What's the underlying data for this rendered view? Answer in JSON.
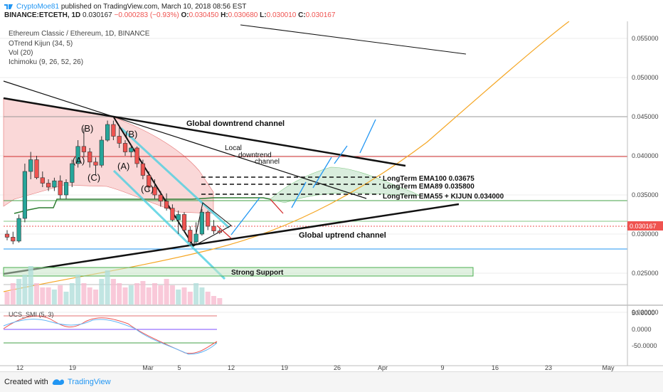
{
  "header": {
    "author": "CryptoMoe81",
    "published_text": "published on TradingView.com, March 10, 2018 08:56 EST",
    "symbol_line": "BINANCE:ETCETH, 1D",
    "last": "0.030167",
    "change": "−0.000283 (−0.93%)",
    "open_label": "O:",
    "open_value": "0.030450",
    "high_label": "H:",
    "high_value": "0.030680",
    "low_label": "L:",
    "low_value": "0.030010",
    "close_label": "C:",
    "close_value": "0.030167"
  },
  "legend": {
    "title": "Ethereum Classic / Ethereum, 1D, BINANCE",
    "ind1": "OTrend Kijun (34, 5)",
    "ind2": "Vol (20)",
    "ind3": "Ichimoku (9, 26, 52, 26)",
    "smi": "UCS_SMI (5, 3)"
  },
  "footer": {
    "created": "Created with",
    "brand": "TradingView"
  },
  "colors": {
    "up": "#26a69a",
    "down": "#ef5350",
    "cloud_red": "#f8c8c8",
    "cloud_green": "#cfe9d4",
    "blue_line": "#2196f3",
    "cyan": "#4dd0e1",
    "orange": "#f5a623",
    "kijun": "#2e7d32"
  },
  "chart_data": {
    "type": "candlestick",
    "price_axis": {
      "ticks": [
        "0.055000",
        "0.050000",
        "0.045000",
        "0.040000",
        "0.035000",
        "0.030000",
        "0.025000",
        "0.020000"
      ],
      "current": "0.030167"
    },
    "smi_axis": {
      "ticks": [
        "50.0000",
        "0.0000",
        "-50.0000"
      ]
    },
    "x_ticks": [
      "12",
      "19",
      "Mar",
      "5",
      "12",
      "19",
      "26",
      "Apr",
      "9",
      "16",
      "23",
      "May"
    ],
    "candles": [
      [
        0.03,
        0.0305,
        0.0292,
        0.0296
      ],
      [
        0.0296,
        0.0303,
        0.0287,
        0.0291
      ],
      [
        0.0291,
        0.0325,
        0.0289,
        0.032
      ],
      [
        0.032,
        0.039,
        0.0315,
        0.038
      ],
      [
        0.038,
        0.0405,
        0.037,
        0.0395
      ],
      [
        0.0395,
        0.04,
        0.037,
        0.0372
      ],
      [
        0.0372,
        0.038,
        0.036,
        0.0365
      ],
      [
        0.0365,
        0.037,
        0.0355,
        0.036
      ],
      [
        0.036,
        0.0372,
        0.0355,
        0.0368
      ],
      [
        0.0368,
        0.0375,
        0.0345,
        0.035
      ],
      [
        0.035,
        0.037,
        0.0345,
        0.0366
      ],
      [
        0.0366,
        0.0395,
        0.036,
        0.039
      ],
      [
        0.039,
        0.042,
        0.0385,
        0.0412
      ],
      [
        0.0412,
        0.0435,
        0.0398,
        0.0405
      ],
      [
        0.0405,
        0.041,
        0.0385,
        0.0392
      ],
      [
        0.0392,
        0.0398,
        0.0375,
        0.0388
      ],
      [
        0.0388,
        0.0425,
        0.0385,
        0.042
      ],
      [
        0.042,
        0.0445,
        0.0418,
        0.044
      ],
      [
        0.044,
        0.0445,
        0.042,
        0.0425
      ],
      [
        0.0425,
        0.0438,
        0.041,
        0.0416
      ],
      [
        0.0416,
        0.042,
        0.04,
        0.0405
      ],
      [
        0.0405,
        0.0415,
        0.0398,
        0.041
      ],
      [
        0.041,
        0.0412,
        0.0385,
        0.039
      ],
      [
        0.039,
        0.0395,
        0.037,
        0.0375
      ],
      [
        0.0375,
        0.038,
        0.0355,
        0.036
      ],
      [
        0.036,
        0.037,
        0.0345,
        0.035
      ],
      [
        0.035,
        0.0355,
        0.0335,
        0.0342
      ],
      [
        0.0342,
        0.0352,
        0.033,
        0.0333
      ],
      [
        0.0333,
        0.0338,
        0.0316,
        0.0318
      ],
      [
        0.0318,
        0.033,
        0.03,
        0.0325
      ],
      [
        0.0325,
        0.0328,
        0.0302,
        0.0305
      ],
      [
        0.0305,
        0.031,
        0.0285,
        0.029
      ],
      [
        0.029,
        0.0315,
        0.0288,
        0.03
      ],
      [
        0.03,
        0.0332,
        0.0298,
        0.0328
      ],
      [
        0.0328,
        0.033,
        0.0305,
        0.031
      ],
      [
        0.031,
        0.0318,
        0.03,
        0.0304
      ],
      [
        0.0304,
        0.0307,
        0.03,
        0.0302
      ]
    ],
    "volume": [
      0.3,
      0.5,
      0.6,
      0.7,
      0.9,
      0.5,
      0.4,
      0.4,
      0.35,
      0.45,
      0.3,
      0.5,
      0.7,
      0.5,
      0.4,
      0.35,
      0.6,
      0.8,
      0.6,
      0.5,
      0.4,
      0.45,
      0.5,
      0.55,
      0.4,
      0.5,
      0.45,
      0.6,
      0.45,
      0.35,
      0.4,
      0.3,
      0.5,
      0.4,
      0.3,
      0.2,
      0.15
    ],
    "annotations": {
      "global_downtrend": "Global downtrend channel",
      "local_downtrend_1": "Local",
      "local_downtrend_2": "downtrend",
      "local_downtrend_3": "channel",
      "global_uptrend": "Global uptrend channel",
      "strong_support": "Strong Support",
      "ema100": "LongTerm EMA100 0.03675",
      "ema89": "LongTerm EMA89 0.035800",
      "ema55": "LongTerm EMA55 + KIJUN 0.034000",
      "waves": [
        "(B)",
        "(A)",
        "(C)",
        "(A)",
        "(B)",
        "(C)"
      ]
    }
  }
}
